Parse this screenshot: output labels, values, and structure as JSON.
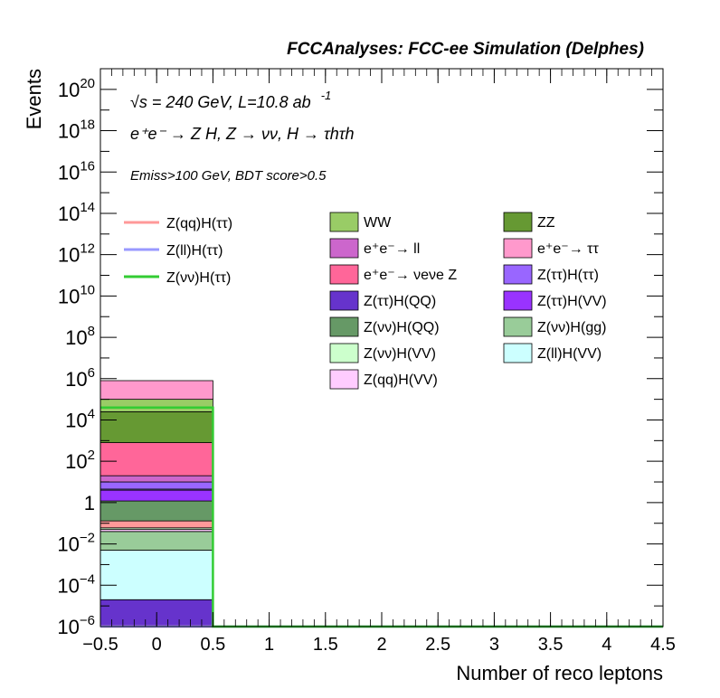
{
  "header": {
    "title": "FCCAnalyses: FCC-ee Simulation (Delphes)"
  },
  "annotations": {
    "line1": "√s = 240 GeV, L=10.8 ab",
    "line1_sup": "-1",
    "line2": "e⁺e⁻ → Z H, Z → νν, H → τhτh",
    "line3": "Emiss>100 GeV, BDT score>0.5"
  },
  "chart_data": {
    "type": "bar",
    "stacked": true,
    "log_y": true,
    "xlabel": "Number of reco leptons",
    "ylabel": "Events",
    "xlim": [
      -0.5,
      4.5
    ],
    "ylim": [
      1e-06,
      1e+21
    ],
    "x_ticks": [
      "−0.5",
      "0",
      "0.5",
      "1",
      "1.5",
      "2",
      "2.5",
      "3",
      "3.5",
      "4",
      "4.5"
    ],
    "x_tick_values": [
      -0.5,
      0,
      0.5,
      1,
      1.5,
      2,
      2.5,
      3,
      3.5,
      4,
      4.5
    ],
    "y_tick_exponents": [
      -6,
      -4,
      -2,
      0,
      2,
      4,
      6,
      8,
      10,
      12,
      14,
      16,
      18,
      20
    ],
    "bin": [
      -0.5,
      0.5
    ],
    "stack_bottom_to_top": [
      {
        "name": "Z(ττ)H(QQ)",
        "color": "#6633cc",
        "upper": 2e-05
      },
      {
        "name": "Z(ll)H(VV)",
        "color": "#ccffff",
        "upper": 0.005
      },
      {
        "name": "Z(νν)H(gg)",
        "color": "#99cc99",
        "upper": 0.04
      },
      {
        "name": "Z(qq)H(VV)",
        "color": "#ffccff",
        "upper": 0.05
      },
      {
        "name": "Z(νν)H(VV)",
        "color": "#ccffcc",
        "upper": 0.06
      },
      {
        "name": "Z(qq)H(ττ)",
        "color": "#ff9999",
        "upper": 0.13
      },
      {
        "name": "Z(νν)H(QQ)",
        "color": "#669966",
        "upper": 1.2
      },
      {
        "name": "Z(ττ)H(VV)",
        "color": "#9933ff",
        "upper": 4.0
      },
      {
        "name": "Z(ll)H(ττ)",
        "color": "#9999ff",
        "upper": 4.5
      },
      {
        "name": "Z(ττ)H(ττ)",
        "color": "#9966ff",
        "upper": 10
      },
      {
        "name": "e⁺e⁻ → ll",
        "color": "#cc66cc",
        "upper": 20
      },
      {
        "name": "e⁺e⁻ → νeνe Z",
        "color": "#ff6699",
        "upper": 800
      },
      {
        "name": "ZZ",
        "color": "#669933",
        "upper": 25000
      },
      {
        "name": "WW",
        "color": "#99cc66",
        "upper": 100000
      },
      {
        "name": "e⁺e⁻ → ττ",
        "color": "#ff99cc",
        "upper": 800000
      }
    ],
    "signal_lines": [
      {
        "name": "Z(qq)H(ττ)",
        "color": "#ff9999",
        "value": 1e-06
      },
      {
        "name": "Z(ll)H(ττ)",
        "color": "#9999ff",
        "value": 1e-06
      },
      {
        "name": "Z(νν)H(ττ)",
        "color": "#33cc33",
        "value": 40000
      }
    ],
    "legend_lines": [
      {
        "label": "Z(qq)H(ττ)",
        "color": "#ff9999"
      },
      {
        "label": "Z(ll)H(ττ)",
        "color": "#9999ff"
      },
      {
        "label": "Z(νν)H(ττ)",
        "color": "#33cc33"
      }
    ],
    "legend_boxes": [
      {
        "label": "WW",
        "color": "#99cc66"
      },
      {
        "label": "ZZ",
        "color": "#669933"
      },
      {
        "label": "e⁺e⁻→ ll",
        "color": "#cc66cc"
      },
      {
        "label": "e⁺e⁻→ ττ",
        "color": "#ff99cc"
      },
      {
        "label": "e⁺e⁻→ νeνe Z",
        "color": "#ff6699"
      },
      {
        "label": "Z(ττ)H(ττ)",
        "color": "#9966ff"
      },
      {
        "label": "Z(ττ)H(QQ)",
        "color": "#6633cc"
      },
      {
        "label": "Z(ττ)H(VV)",
        "color": "#9933ff"
      },
      {
        "label": "Z(νν)H(QQ)",
        "color": "#669966"
      },
      {
        "label": "Z(νν)H(gg)",
        "color": "#99cc99"
      },
      {
        "label": "Z(νν)H(VV)",
        "color": "#ccffcc"
      },
      {
        "label": "Z(ll)H(VV)",
        "color": "#ccffff"
      },
      {
        "label": "Z(qq)H(VV)",
        "color": "#ffccff"
      }
    ]
  }
}
